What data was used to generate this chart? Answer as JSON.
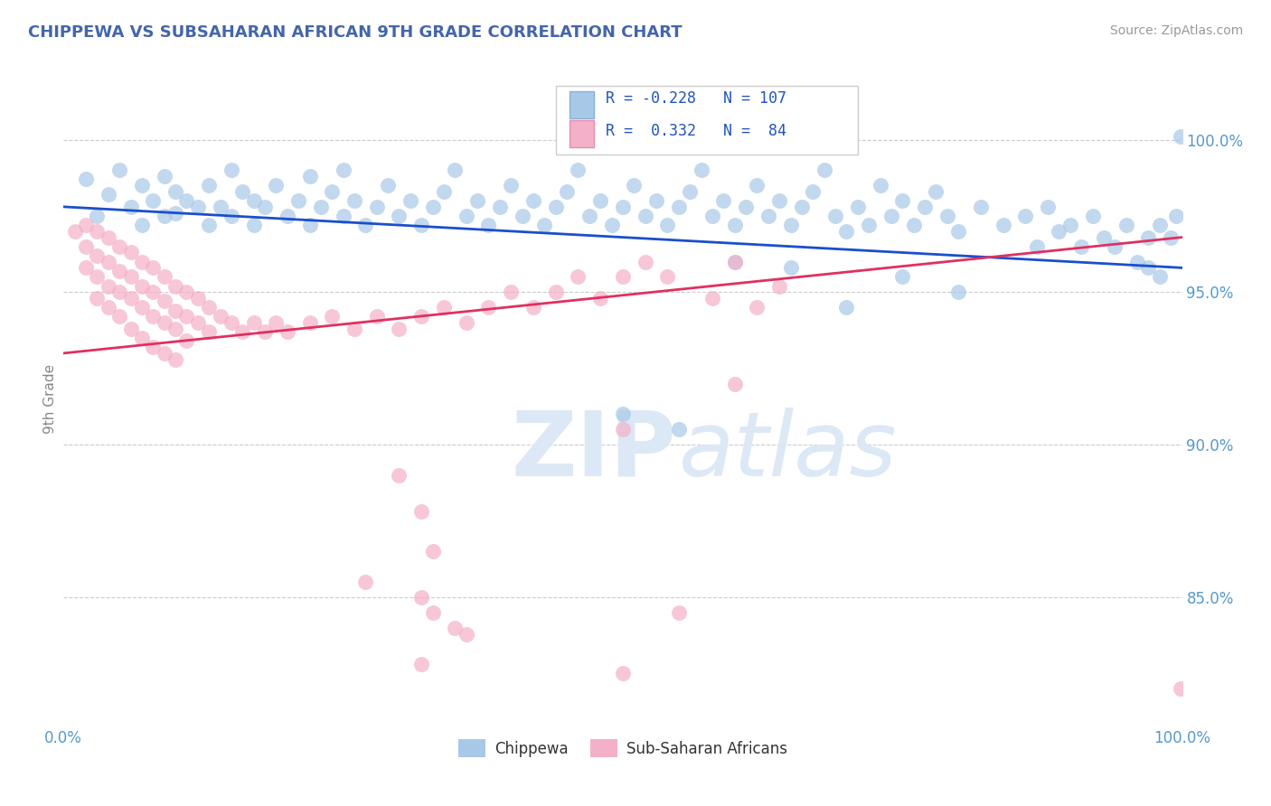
{
  "title": "CHIPPEWA VS SUBSAHARAN AFRICAN 9TH GRADE CORRELATION CHART",
  "source_text": "Source: ZipAtlas.com",
  "ylabel": "9th Grade",
  "xlim": [
    0.0,
    1.0
  ],
  "ylim": [
    0.808,
    1.022
  ],
  "blue_R": -0.228,
  "blue_N": 107,
  "pink_R": 0.332,
  "pink_N": 84,
  "blue_color": "#a8c8e8",
  "pink_color": "#f4b0c8",
  "blue_line_color": "#1a4fcc",
  "pink_line_color": "#e03060",
  "legend_label_blue": "Chippewa",
  "legend_label_pink": "Sub-Saharan Africans",
  "ytick_positions": [
    0.85,
    0.9,
    0.95,
    1.0
  ],
  "ytick_labels": [
    "85.0%",
    "90.0%",
    "95.0%",
    "100.0%"
  ],
  "grid_lines": [
    0.85,
    0.9,
    0.95,
    1.0
  ],
  "blue_line_y0": 0.978,
  "blue_line_y1": 0.958,
  "pink_line_y0": 0.93,
  "pink_line_y1": 0.968,
  "blue_dots": [
    [
      0.02,
      0.987
    ],
    [
      0.03,
      0.975
    ],
    [
      0.04,
      0.982
    ],
    [
      0.05,
      0.99
    ],
    [
      0.06,
      0.978
    ],
    [
      0.07,
      0.985
    ],
    [
      0.07,
      0.972
    ],
    [
      0.08,
      0.98
    ],
    [
      0.09,
      0.988
    ],
    [
      0.09,
      0.975
    ],
    [
      0.1,
      0.983
    ],
    [
      0.1,
      0.976
    ],
    [
      0.11,
      0.98
    ],
    [
      0.12,
      0.978
    ],
    [
      0.13,
      0.985
    ],
    [
      0.13,
      0.972
    ],
    [
      0.14,
      0.978
    ],
    [
      0.15,
      0.99
    ],
    [
      0.15,
      0.975
    ],
    [
      0.16,
      0.983
    ],
    [
      0.17,
      0.98
    ],
    [
      0.17,
      0.972
    ],
    [
      0.18,
      0.978
    ],
    [
      0.19,
      0.985
    ],
    [
      0.2,
      0.975
    ],
    [
      0.21,
      0.98
    ],
    [
      0.22,
      0.988
    ],
    [
      0.22,
      0.972
    ],
    [
      0.23,
      0.978
    ],
    [
      0.24,
      0.983
    ],
    [
      0.25,
      0.99
    ],
    [
      0.25,
      0.975
    ],
    [
      0.26,
      0.98
    ],
    [
      0.27,
      0.972
    ],
    [
      0.28,
      0.978
    ],
    [
      0.29,
      0.985
    ],
    [
      0.3,
      0.975
    ],
    [
      0.31,
      0.98
    ],
    [
      0.32,
      0.972
    ],
    [
      0.33,
      0.978
    ],
    [
      0.34,
      0.983
    ],
    [
      0.35,
      0.99
    ],
    [
      0.36,
      0.975
    ],
    [
      0.37,
      0.98
    ],
    [
      0.38,
      0.972
    ],
    [
      0.39,
      0.978
    ],
    [
      0.4,
      0.985
    ],
    [
      0.41,
      0.975
    ],
    [
      0.42,
      0.98
    ],
    [
      0.43,
      0.972
    ],
    [
      0.44,
      0.978
    ],
    [
      0.45,
      0.983
    ],
    [
      0.46,
      0.99
    ],
    [
      0.47,
      0.975
    ],
    [
      0.48,
      0.98
    ],
    [
      0.49,
      0.972
    ],
    [
      0.5,
      0.978
    ],
    [
      0.51,
      0.985
    ],
    [
      0.52,
      0.975
    ],
    [
      0.53,
      0.98
    ],
    [
      0.54,
      0.972
    ],
    [
      0.55,
      0.978
    ],
    [
      0.56,
      0.983
    ],
    [
      0.57,
      0.99
    ],
    [
      0.58,
      0.975
    ],
    [
      0.59,
      0.98
    ],
    [
      0.6,
      0.972
    ],
    [
      0.61,
      0.978
    ],
    [
      0.62,
      0.985
    ],
    [
      0.63,
      0.975
    ],
    [
      0.64,
      0.98
    ],
    [
      0.65,
      0.972
    ],
    [
      0.66,
      0.978
    ],
    [
      0.67,
      0.983
    ],
    [
      0.68,
      0.99
    ],
    [
      0.69,
      0.975
    ],
    [
      0.7,
      0.97
    ],
    [
      0.71,
      0.978
    ],
    [
      0.72,
      0.972
    ],
    [
      0.73,
      0.985
    ],
    [
      0.74,
      0.975
    ],
    [
      0.75,
      0.98
    ],
    [
      0.76,
      0.972
    ],
    [
      0.77,
      0.978
    ],
    [
      0.78,
      0.983
    ],
    [
      0.79,
      0.975
    ],
    [
      0.8,
      0.97
    ],
    [
      0.82,
      0.978
    ],
    [
      0.84,
      0.972
    ],
    [
      0.86,
      0.975
    ],
    [
      0.87,
      0.965
    ],
    [
      0.88,
      0.978
    ],
    [
      0.89,
      0.97
    ],
    [
      0.9,
      0.972
    ],
    [
      0.91,
      0.965
    ],
    [
      0.92,
      0.975
    ],
    [
      0.93,
      0.968
    ],
    [
      0.94,
      0.965
    ],
    [
      0.95,
      0.972
    ],
    [
      0.96,
      0.96
    ],
    [
      0.97,
      0.968
    ],
    [
      0.97,
      0.958
    ],
    [
      0.98,
      0.972
    ],
    [
      0.98,
      0.955
    ],
    [
      0.99,
      0.968
    ],
    [
      0.995,
      0.975
    ],
    [
      0.999,
      1.001
    ],
    [
      0.5,
      0.91
    ],
    [
      0.55,
      0.905
    ],
    [
      0.6,
      0.96
    ],
    [
      0.65,
      0.958
    ],
    [
      0.7,
      0.945
    ],
    [
      0.75,
      0.955
    ],
    [
      0.8,
      0.95
    ]
  ],
  "pink_dots": [
    [
      0.01,
      0.97
    ],
    [
      0.02,
      0.972
    ],
    [
      0.02,
      0.965
    ],
    [
      0.02,
      0.958
    ],
    [
      0.03,
      0.97
    ],
    [
      0.03,
      0.962
    ],
    [
      0.03,
      0.955
    ],
    [
      0.03,
      0.948
    ],
    [
      0.04,
      0.968
    ],
    [
      0.04,
      0.96
    ],
    [
      0.04,
      0.952
    ],
    [
      0.04,
      0.945
    ],
    [
      0.05,
      0.965
    ],
    [
      0.05,
      0.957
    ],
    [
      0.05,
      0.95
    ],
    [
      0.05,
      0.942
    ],
    [
      0.06,
      0.963
    ],
    [
      0.06,
      0.955
    ],
    [
      0.06,
      0.948
    ],
    [
      0.06,
      0.938
    ],
    [
      0.07,
      0.96
    ],
    [
      0.07,
      0.952
    ],
    [
      0.07,
      0.945
    ],
    [
      0.07,
      0.935
    ],
    [
      0.08,
      0.958
    ],
    [
      0.08,
      0.95
    ],
    [
      0.08,
      0.942
    ],
    [
      0.08,
      0.932
    ],
    [
      0.09,
      0.955
    ],
    [
      0.09,
      0.947
    ],
    [
      0.09,
      0.94
    ],
    [
      0.09,
      0.93
    ],
    [
      0.1,
      0.952
    ],
    [
      0.1,
      0.944
    ],
    [
      0.1,
      0.938
    ],
    [
      0.1,
      0.928
    ],
    [
      0.11,
      0.95
    ],
    [
      0.11,
      0.942
    ],
    [
      0.11,
      0.934
    ],
    [
      0.12,
      0.948
    ],
    [
      0.12,
      0.94
    ],
    [
      0.13,
      0.945
    ],
    [
      0.13,
      0.937
    ],
    [
      0.14,
      0.942
    ],
    [
      0.15,
      0.94
    ],
    [
      0.16,
      0.937
    ],
    [
      0.17,
      0.94
    ],
    [
      0.18,
      0.937
    ],
    [
      0.19,
      0.94
    ],
    [
      0.2,
      0.937
    ],
    [
      0.22,
      0.94
    ],
    [
      0.24,
      0.942
    ],
    [
      0.26,
      0.938
    ],
    [
      0.28,
      0.942
    ],
    [
      0.3,
      0.938
    ],
    [
      0.32,
      0.942
    ],
    [
      0.34,
      0.945
    ],
    [
      0.36,
      0.94
    ],
    [
      0.38,
      0.945
    ],
    [
      0.4,
      0.95
    ],
    [
      0.42,
      0.945
    ],
    [
      0.44,
      0.95
    ],
    [
      0.46,
      0.955
    ],
    [
      0.48,
      0.948
    ],
    [
      0.5,
      0.955
    ],
    [
      0.52,
      0.96
    ],
    [
      0.54,
      0.955
    ],
    [
      0.58,
      0.948
    ],
    [
      0.6,
      0.96
    ],
    [
      0.62,
      0.945
    ],
    [
      0.64,
      0.952
    ],
    [
      0.5,
      0.905
    ],
    [
      0.6,
      0.92
    ],
    [
      0.3,
      0.89
    ],
    [
      0.32,
      0.878
    ],
    [
      0.33,
      0.865
    ],
    [
      0.32,
      0.85
    ],
    [
      0.27,
      0.855
    ],
    [
      0.35,
      0.84
    ],
    [
      0.36,
      0.838
    ],
    [
      0.5,
      0.825
    ],
    [
      0.55,
      0.845
    ],
    [
      0.32,
      0.828
    ],
    [
      0.33,
      0.845
    ],
    [
      0.999,
      0.82
    ]
  ]
}
